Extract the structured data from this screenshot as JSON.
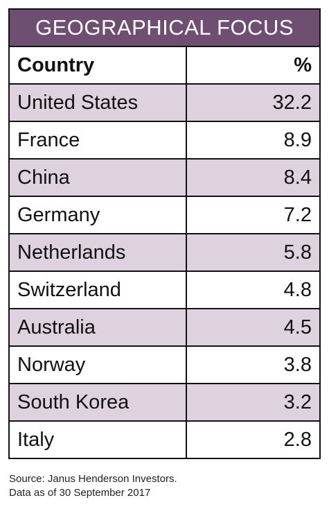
{
  "title": "GEOGRAPHICAL FOCUS",
  "header": {
    "country": "Country",
    "percent": "%"
  },
  "rows": [
    {
      "country": "United States",
      "value": "32.2"
    },
    {
      "country": "France",
      "value": "8.9"
    },
    {
      "country": "China",
      "value": "8.4"
    },
    {
      "country": "Germany",
      "value": "7.2"
    },
    {
      "country": "Netherlands",
      "value": "5.8"
    },
    {
      "country": "Switzerland",
      "value": "4.8"
    },
    {
      "country": "Australia",
      "value": "4.5"
    },
    {
      "country": "Norway",
      "value": "3.8"
    },
    {
      "country": "South Korea",
      "value": "3.2"
    },
    {
      "country": "Italy",
      "value": "2.8"
    }
  ],
  "source": {
    "line1": "Source: Janus Henderson Investors.",
    "line2": "Data as of 30 September 2017"
  },
  "colors": {
    "title_bg": "#6e4f72",
    "shaded_row": "#ddd2de"
  },
  "chart_data": {
    "type": "table",
    "title": "GEOGRAPHICAL FOCUS",
    "columns": [
      "Country",
      "%"
    ],
    "categories": [
      "United States",
      "France",
      "China",
      "Germany",
      "Netherlands",
      "Switzerland",
      "Australia",
      "Norway",
      "South Korea",
      "Italy"
    ],
    "values": [
      32.2,
      8.9,
      8.4,
      7.2,
      5.8,
      4.8,
      4.5,
      3.8,
      3.2,
      2.8
    ]
  }
}
